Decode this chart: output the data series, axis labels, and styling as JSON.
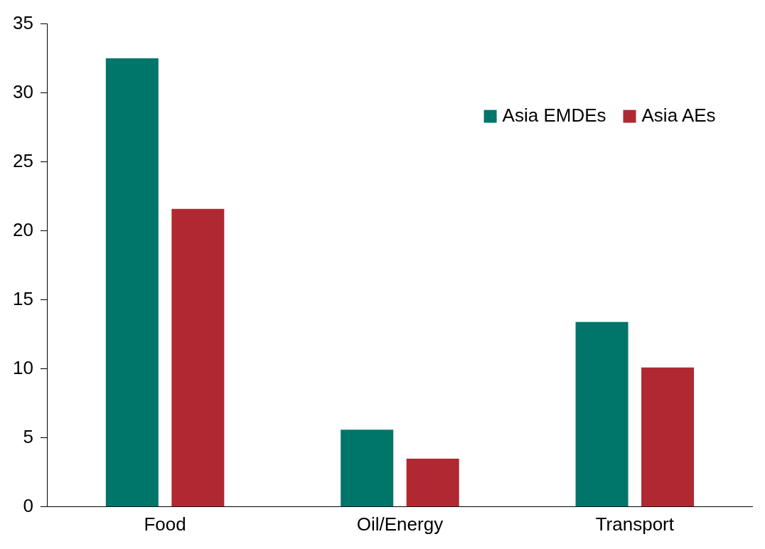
{
  "chart_data": {
    "type": "bar",
    "categories": [
      "Food",
      "Oil/Energy",
      "Transport"
    ],
    "series": [
      {
        "name": "Asia EMDEs",
        "color": "#00756a",
        "values": [
          32.5,
          5.6,
          13.4
        ]
      },
      {
        "name": "Asia AEs",
        "color": "#b02831",
        "values": [
          21.6,
          3.5,
          10.1
        ]
      }
    ],
    "ylim": [
      0,
      35
    ],
    "yticks": [
      0,
      5,
      10,
      15,
      20,
      25,
      30,
      35
    ],
    "grid": false,
    "legend": "top right"
  }
}
